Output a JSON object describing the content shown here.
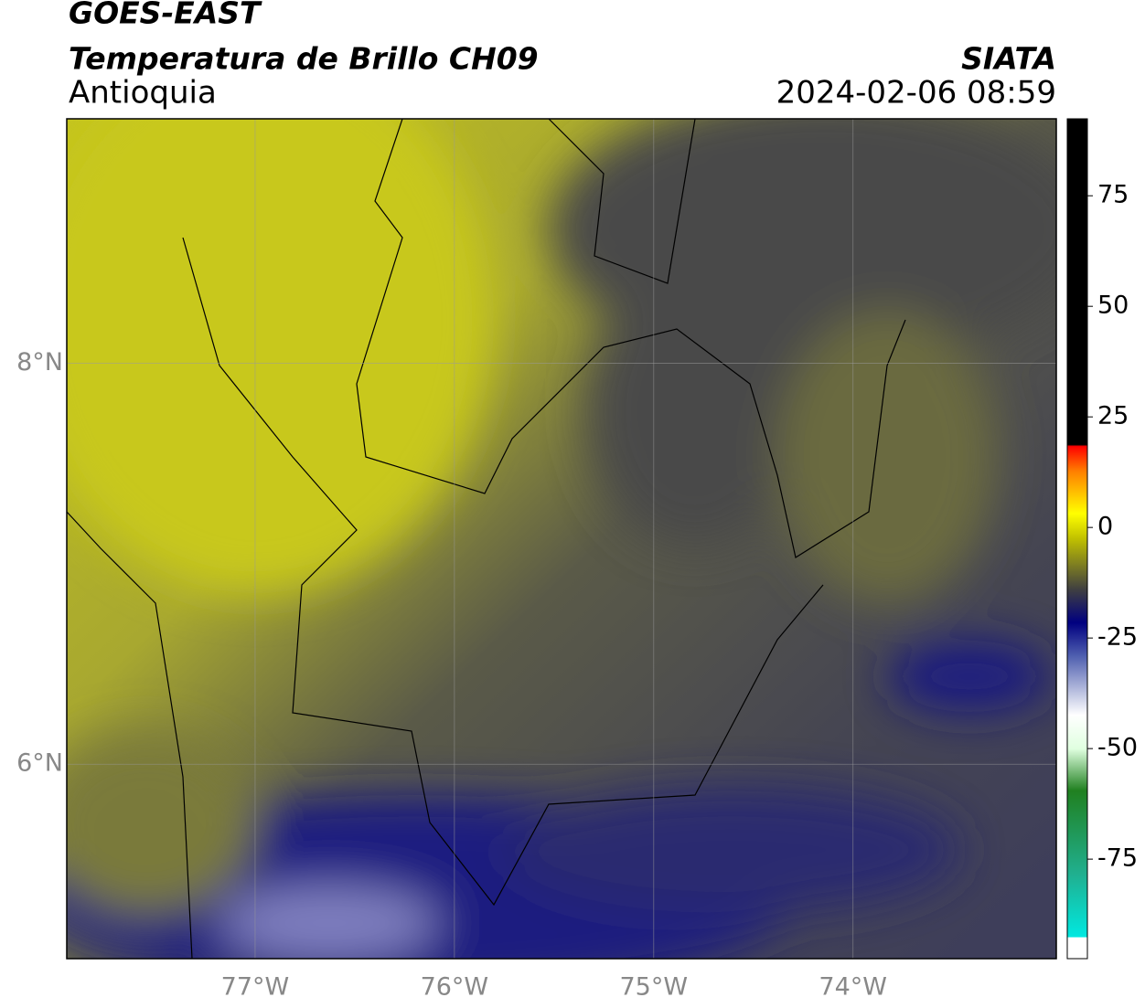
{
  "header": {
    "title": "GOES-EAST",
    "subtitle": "Temperatura de Brillo CH09",
    "region": "Antioquia",
    "source": "SIATA",
    "datetime": "2024-02-06 08:59"
  },
  "map": {
    "lonlim": [
      -77.945,
      -72.98
    ],
    "latlim": [
      5.03,
      9.22
    ],
    "lon_ticks": [
      {
        "value": -77,
        "label": "77°W"
      },
      {
        "value": -76,
        "label": "76°W"
      },
      {
        "value": -75,
        "label": "75°W"
      },
      {
        "value": -74,
        "label": "74°W"
      }
    ],
    "lat_ticks": [
      {
        "value": 8,
        "label": "8°N"
      },
      {
        "value": 6,
        "label": "6°N"
      }
    ]
  },
  "colorbar": {
    "lim": [
      -97.5,
      92.4
    ],
    "ticks": [
      75,
      50,
      25,
      0,
      -25,
      -50,
      -75
    ]
  }
}
